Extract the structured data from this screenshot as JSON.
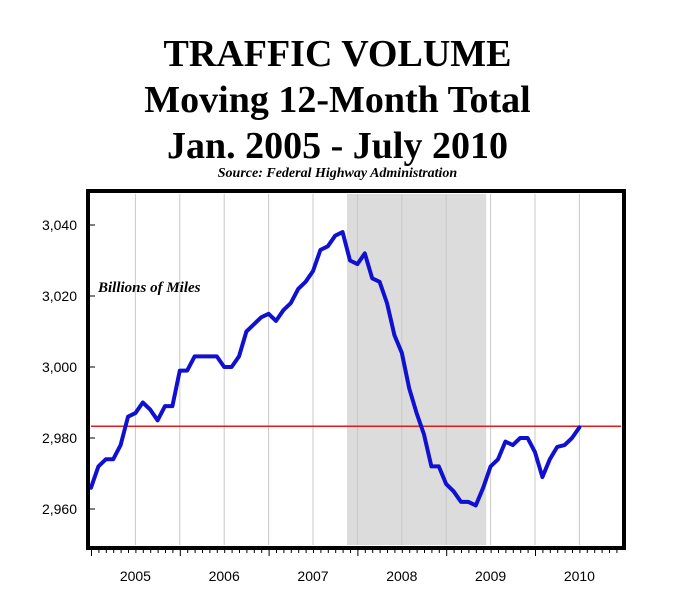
{
  "title_lines": [
    "TRAFFIC  VOLUME",
    "Moving 12-Month Total",
    "Jan. 2005 - July 2010"
  ],
  "source": "Source: Federal Highway Administration",
  "chart_data": {
    "type": "line",
    "title": "TRAFFIC VOLUME Moving 12-Month Total Jan. 2005 - July 2010",
    "subtitle": "Source: Federal Highway Administration",
    "annotation": "Billions of Miles",
    "xlabel": "",
    "ylabel": "",
    "x_tick_labels": [
      "2005",
      "2006",
      "2007",
      "2008",
      "2009",
      "2010"
    ],
    "y_tick_labels": [
      "3,040",
      "3,020",
      "3,000",
      "2,980",
      "2,960"
    ],
    "y_ticks": [
      3040,
      3020,
      3000,
      2980,
      2960
    ],
    "ylim": [
      2955,
      3045
    ],
    "xlim": [
      "2005-01",
      "2010-12"
    ],
    "grid": "vertical",
    "shaded_region": {
      "start": "2007-12",
      "end": "2009-06",
      "color": "#dcdcdc"
    },
    "reference_line": {
      "value": 2983.3,
      "color": "#e31b1b"
    },
    "series": [
      {
        "color": "#1010d0",
        "points": [
          [
            "2005-01",
            2966
          ],
          [
            "2005-02",
            2972
          ],
          [
            "2005-03",
            2974
          ],
          [
            "2005-04",
            2974
          ],
          [
            "2005-05",
            2978
          ],
          [
            "2005-06",
            2986
          ],
          [
            "2005-07",
            2987
          ],
          [
            "2005-08",
            2990
          ],
          [
            "2005-09",
            2988
          ],
          [
            "2005-10",
            2985
          ],
          [
            "2005-11",
            2989
          ],
          [
            "2005-12",
            2989
          ],
          [
            "2006-01",
            2999
          ],
          [
            "2006-02",
            2999
          ],
          [
            "2006-03",
            3003
          ],
          [
            "2006-04",
            3003
          ],
          [
            "2006-05",
            3003
          ],
          [
            "2006-06",
            3003
          ],
          [
            "2006-07",
            3000
          ],
          [
            "2006-08",
            3000
          ],
          [
            "2006-09",
            3003
          ],
          [
            "2006-10",
            3010
          ],
          [
            "2006-11",
            3012
          ],
          [
            "2006-12",
            3014
          ],
          [
            "2007-01",
            3015
          ],
          [
            "2007-02",
            3013
          ],
          [
            "2007-03",
            3016
          ],
          [
            "2007-04",
            3018
          ],
          [
            "2007-05",
            3022
          ],
          [
            "2007-06",
            3024
          ],
          [
            "2007-07",
            3027
          ],
          [
            "2007-08",
            3033
          ],
          [
            "2007-09",
            3034
          ],
          [
            "2007-10",
            3037
          ],
          [
            "2007-11",
            3038
          ],
          [
            "2007-12",
            3030
          ],
          [
            "2008-01",
            3029
          ],
          [
            "2008-02",
            3032
          ],
          [
            "2008-03",
            3025
          ],
          [
            "2008-04",
            3024
          ],
          [
            "2008-05",
            3018
          ],
          [
            "2008-06",
            3009
          ],
          [
            "2008-07",
            3004
          ],
          [
            "2008-08",
            2994
          ],
          [
            "2008-09",
            2987
          ],
          [
            "2008-10",
            2981
          ],
          [
            "2008-11",
            2972
          ],
          [
            "2008-12",
            2972
          ],
          [
            "2009-01",
            2967
          ],
          [
            "2009-02",
            2965
          ],
          [
            "2009-03",
            2962
          ],
          [
            "2009-04",
            2962
          ],
          [
            "2009-05",
            2961
          ],
          [
            "2009-06",
            2966
          ],
          [
            "2009-07",
            2972
          ],
          [
            "2009-08",
            2974
          ],
          [
            "2009-09",
            2979
          ],
          [
            "2009-10",
            2978
          ],
          [
            "2009-11",
            2980
          ],
          [
            "2009-12",
            2980
          ],
          [
            "2010-01",
            2976
          ],
          [
            "2010-02",
            2969
          ],
          [
            "2010-03",
            2974
          ],
          [
            "2010-04",
            2977.5
          ],
          [
            "2010-05",
            2978
          ],
          [
            "2010-06",
            2980
          ],
          [
            "2010-07",
            2983
          ]
        ]
      }
    ]
  }
}
